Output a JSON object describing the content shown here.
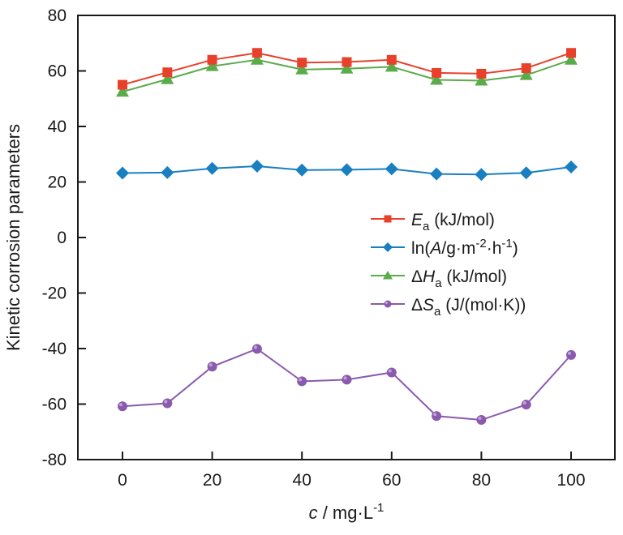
{
  "chart_data": {
    "type": "line",
    "title": "",
    "xlabel": {
      "var": "c",
      "rest": " / mg·L",
      "sup": "-1"
    },
    "ylabel": "Kinetic corrosion parameters",
    "x": [
      0,
      10,
      20,
      30,
      40,
      50,
      60,
      70,
      80,
      90,
      100
    ],
    "xlim": [
      -10,
      110
    ],
    "ylim": [
      -80,
      80
    ],
    "xticks": [
      0,
      20,
      40,
      60,
      80,
      100
    ],
    "yticks": [
      -80,
      -60,
      -40,
      -20,
      0,
      20,
      40,
      60,
      80
    ],
    "xtick_labels": [
      "0",
      "20",
      "40",
      "60",
      "80",
      "100"
    ],
    "ytick_labels": [
      "-80",
      "-60",
      "-40",
      "-20",
      "0",
      "20",
      "40",
      "60",
      "80"
    ],
    "grid": false,
    "legend_position": "right-middle",
    "series": [
      {
        "name": "Ea (kJ/mol)",
        "legend": {
          "prefix": "",
          "italic": "E",
          "sub": "a",
          "rest": " (kJ/mol)"
        },
        "marker": "square",
        "color": "#e8402a",
        "values": [
          55.0,
          59.5,
          64.0,
          66.5,
          63.0,
          63.2,
          64.0,
          59.3,
          59.0,
          61.0,
          66.5
        ]
      },
      {
        "name": "ln(A/g·m-2·h-1)",
        "legend": {
          "prefix": "ln(",
          "italic": "A",
          "sub": "",
          "rest": "/g·m",
          "sup1": "-2",
          "mid": "·h",
          "sup2": "-1",
          "end": ")"
        },
        "marker": "diamond",
        "color": "#1a7fc1",
        "values": [
          23.2,
          23.4,
          24.9,
          25.7,
          24.3,
          24.4,
          24.7,
          22.9,
          22.7,
          23.3,
          25.4
        ]
      },
      {
        "name": "ΔHa (kJ/mol)",
        "legend": {
          "prefix": "Δ",
          "italic": "H",
          "sub": "a",
          "rest": " (kJ/mol)"
        },
        "marker": "triangle",
        "color": "#5aab4a",
        "values": [
          52.5,
          57.0,
          61.7,
          64.0,
          60.5,
          60.8,
          61.5,
          56.8,
          56.5,
          58.5,
          64.0
        ]
      },
      {
        "name": "ΔSa (J/(mol·K))",
        "legend": {
          "prefix": "Δ",
          "italic": "S",
          "sub": "a",
          "rest": " (J/(mol·K))"
        },
        "marker": "circle",
        "color": "#8a5aae",
        "values": [
          -60.8,
          -59.7,
          -46.5,
          -40.1,
          -51.8,
          -51.2,
          -48.6,
          -64.3,
          -65.7,
          -60.2,
          -42.3
        ]
      }
    ]
  }
}
